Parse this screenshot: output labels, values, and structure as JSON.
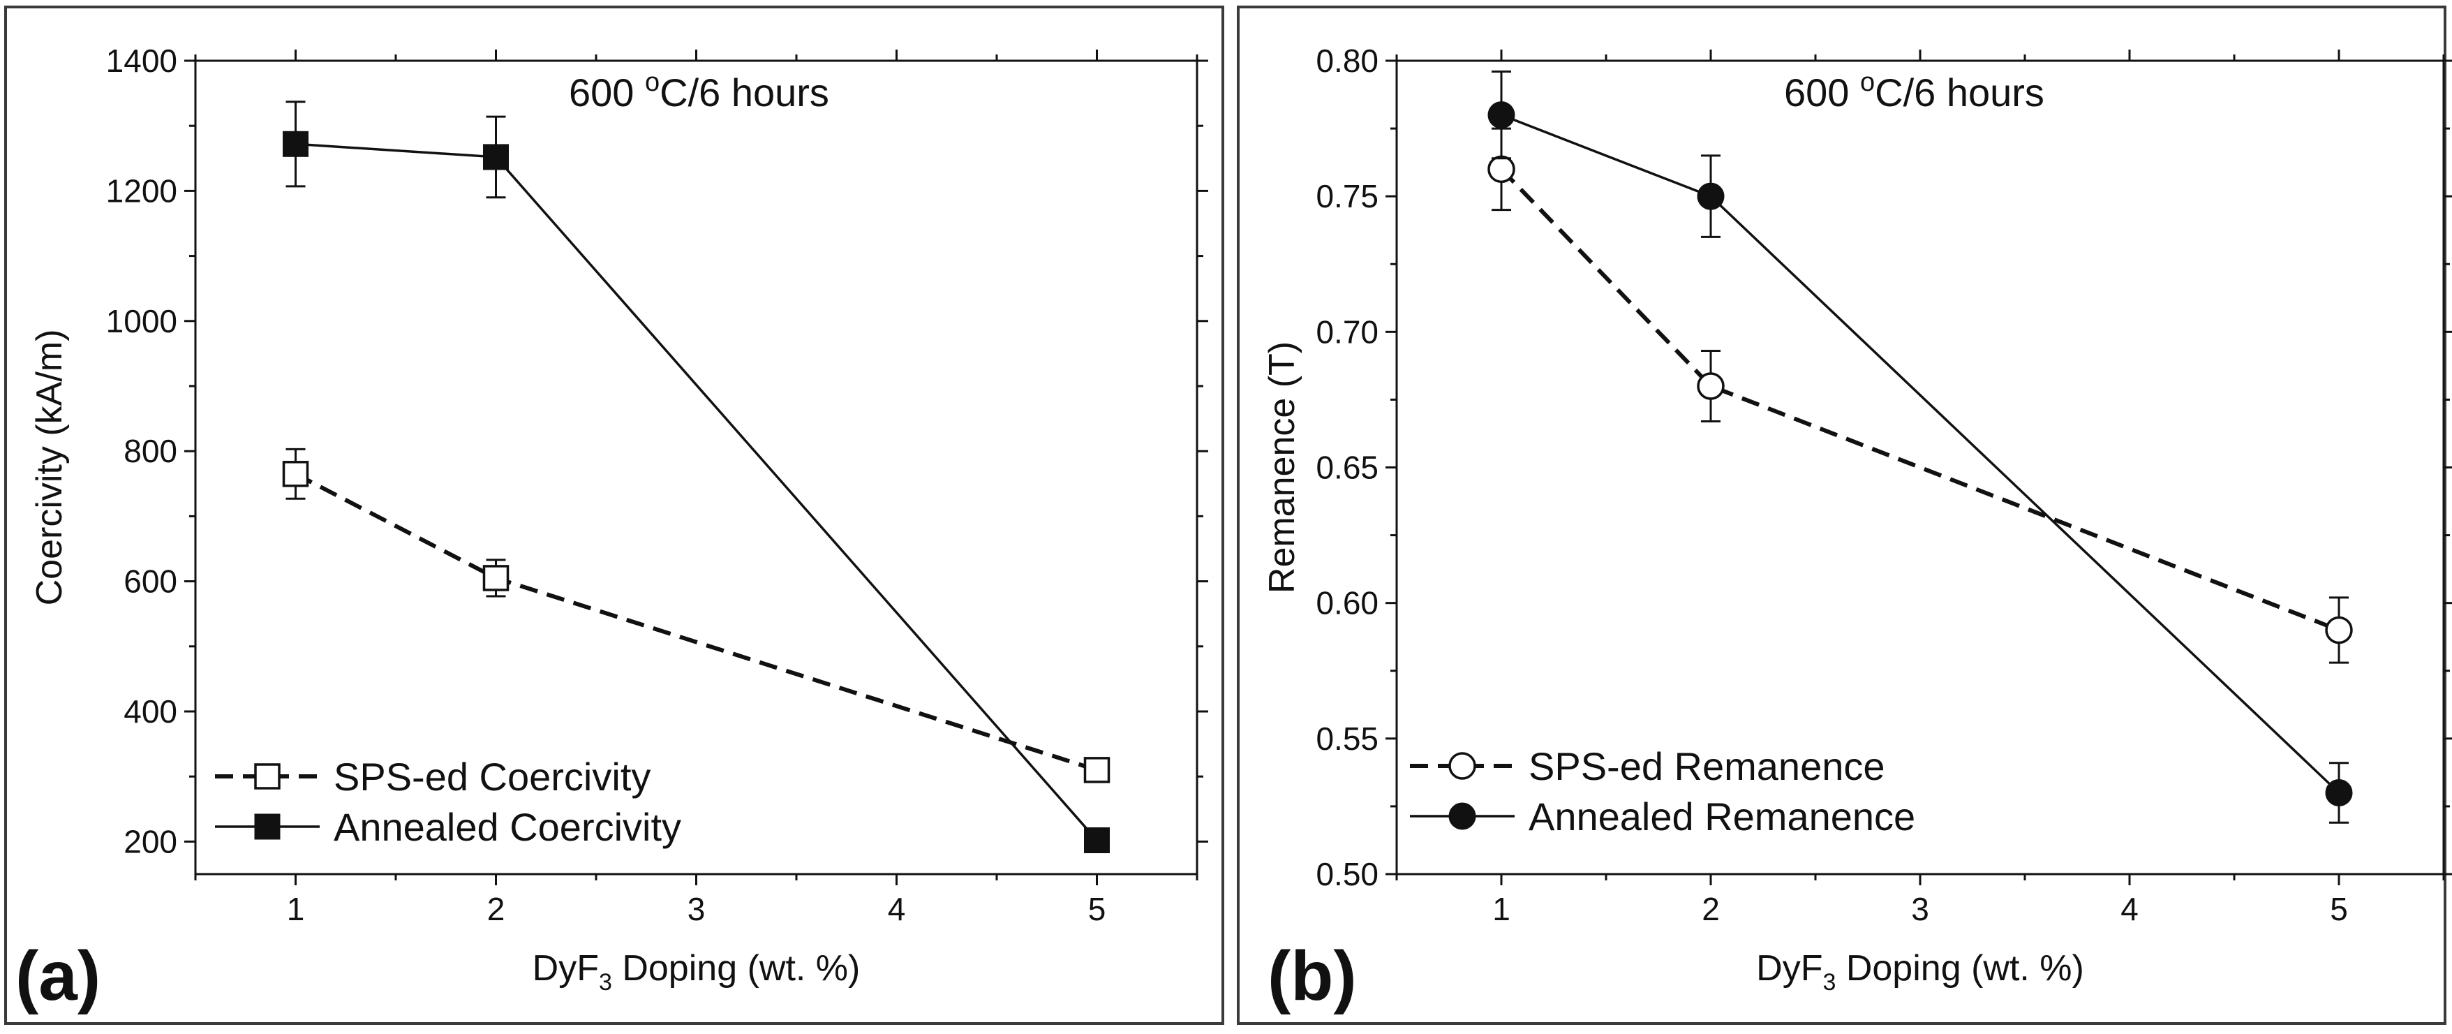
{
  "chart_data": [
    {
      "type": "line",
      "panel_label": "(a)",
      "annotation": {
        "temperature": "600",
        "unit_sup": "o",
        "unit_rest": "C/6 hours"
      },
      "xlabel": {
        "prefix": "DyF",
        "subscript": "3",
        "suffix": " Doping (wt. %)"
      },
      "ylabel": "Coercivity (kA/m)",
      "xlim": [
        0.5,
        5.5
      ],
      "ylim": [
        150,
        1400
      ],
      "xticks": [
        1,
        2,
        3,
        4,
        5
      ],
      "yticks": [
        200,
        400,
        600,
        800,
        1000,
        1200,
        1400
      ],
      "grid": false,
      "legend_position": "lower-left",
      "series": [
        {
          "name": "SPS-ed Coercivity",
          "marker": "square-open",
          "line": "dashed",
          "x": [
            1,
            2,
            5
          ],
          "y": [
            765,
            605,
            310
          ],
          "err": [
            38,
            28,
            0
          ]
        },
        {
          "name": "Annealed Coercivity",
          "marker": "square-filled",
          "line": "solid",
          "x": [
            1,
            2,
            5
          ],
          "y": [
            1272,
            1252,
            202
          ],
          "err": [
            65,
            62,
            0
          ]
        }
      ]
    },
    {
      "type": "line",
      "panel_label": "(b)",
      "annotation": {
        "temperature": "600",
        "unit_sup": "o",
        "unit_rest": "C/6 hours"
      },
      "xlabel": {
        "prefix": "DyF",
        "subscript": "3",
        "suffix": " Doping (wt. %)"
      },
      "ylabel": "Remanence (T)",
      "xlim": [
        0.5,
        5.5
      ],
      "ylim": [
        0.5,
        0.8
      ],
      "xticks": [
        1,
        2,
        3,
        4,
        5
      ],
      "yticks": [
        "0.50",
        "0.55",
        "0.60",
        "0.65",
        "0.70",
        "0.75",
        "0.80"
      ],
      "grid": false,
      "legend_position": "lower-left",
      "series": [
        {
          "name": "SPS-ed Remanence",
          "marker": "circle-open",
          "line": "dashed",
          "x": [
            1,
            2,
            5
          ],
          "y": [
            0.76,
            0.68,
            0.59
          ],
          "err": [
            0.015,
            0.013,
            0.012
          ]
        },
        {
          "name": "Annealed Remanence",
          "marker": "circle-filled",
          "line": "solid",
          "x": [
            1,
            2,
            5
          ],
          "y": [
            0.78,
            0.75,
            0.53
          ],
          "err": [
            0.016,
            0.015,
            0.011
          ]
        }
      ]
    }
  ]
}
